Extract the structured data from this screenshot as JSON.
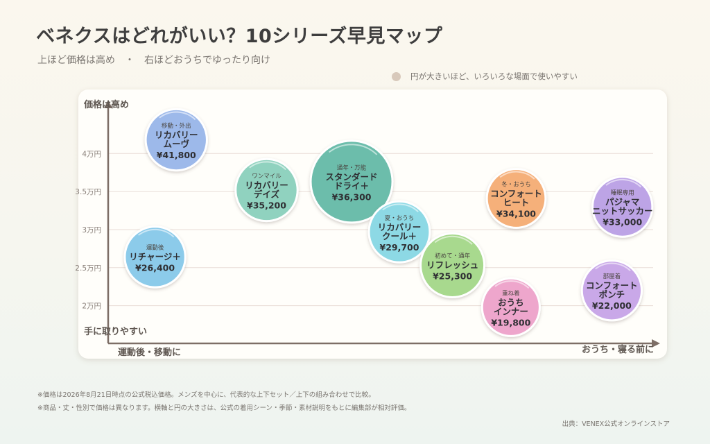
{
  "header": {
    "title": "ベネクスはどれがいい？10シリーズ早見マップ",
    "subtitle": "上ほど価格は高め　・　右ほどおうちでゆったり向け",
    "size_note": "円が大きいほど、いろいろな場面で使いやすい"
  },
  "footer": {
    "note1": "※価格は2026年8月21日時点の公式税込価格。メンズを中心に、代表的な上下セット／上下の組み合わせで比較。",
    "note2": "※商品・丈・性別で価格は異なります。横軸と円の大きさは、公式の着用シーン・季節・素材説明をもとに編集部が相対評価。",
    "source": "出典：VENEX公式オンラインストア"
  },
  "colors": {
    "axis": "#7d6e66",
    "grid": "#e8dcd6",
    "tick_text": "#8a807a"
  },
  "chart_data": {
    "type": "scatter",
    "ylabel": "価格は高め",
    "y_low_label": "手に取りやすい",
    "x_left_label": "運動後・移動に",
    "x_right_label": "おうち・寝る前に",
    "y_ticks": [
      {
        "value": 20000,
        "label": "2万円"
      },
      {
        "value": 25000,
        "label": "2.5万円"
      },
      {
        "value": 30000,
        "label": "3万円"
      },
      {
        "value": 35000,
        "label": "3.5万円"
      },
      {
        "value": 40000,
        "label": "4万円"
      }
    ],
    "ylim": [
      15500,
      46500
    ],
    "xlim": [
      0,
      100
    ],
    "size_range": [
      0,
      100
    ],
    "points": [
      {
        "tag": "移動・外出",
        "name": [
          "リカバリー",
          "ムーヴ"
        ],
        "price": "¥41,800",
        "x": 11,
        "y": 41800,
        "size": 43,
        "color": "#9db9ea"
      },
      {
        "tag": "運動後",
        "name": [
          "リチャージ＋"
        ],
        "price": "¥26,400",
        "x": 7,
        "y": 26400,
        "size": 41,
        "color": "#8ccbea"
      },
      {
        "tag": "ワンマイル",
        "name": [
          "リカバリー",
          "デイズ"
        ],
        "price": "¥35,200",
        "x": 28,
        "y": 35200,
        "size": 45,
        "color": "#90d2bf"
      },
      {
        "tag": "通年・万能",
        "name": [
          "スタンダード",
          "ドライ＋"
        ],
        "price": "¥36,300",
        "x": 44,
        "y": 36300,
        "size": 100,
        "color": "#6cbdab"
      },
      {
        "tag": "夏・おうち",
        "name": [
          "リカバリー",
          "クール＋"
        ],
        "price": "¥29,700",
        "x": 53,
        "y": 29700,
        "size": 42,
        "color": "#8dd9e5"
      },
      {
        "tag": "初めて・通年",
        "name": [
          "リフレッシュ"
        ],
        "price": "¥25,300",
        "x": 63,
        "y": 25300,
        "size": 50,
        "color": "#a8d98e"
      },
      {
        "tag": "冬・おうち",
        "name": [
          "コンフォート",
          "ヒート"
        ],
        "price": "¥34,100",
        "x": 75,
        "y": 34100,
        "size": 36,
        "color": "#f5b07a"
      },
      {
        "tag": "重ね着",
        "name": [
          "おうち",
          "インナー"
        ],
        "price": "¥19,800",
        "x": 74,
        "y": 19800,
        "size": 33,
        "color": "#eea6cc"
      },
      {
        "tag": "睡眠専用",
        "name": [
          "パジャマ",
          "ニットサッカー"
        ],
        "price": "¥33,000",
        "x": 95,
        "y": 33000,
        "size": 39,
        "color": "#bda4e6"
      },
      {
        "tag": "部屋着",
        "name": [
          "コンフォート",
          "ポンチ"
        ],
        "price": "¥22,000",
        "x": 93,
        "y": 22000,
        "size": 39,
        "color": "#c9a8e8"
      }
    ]
  }
}
